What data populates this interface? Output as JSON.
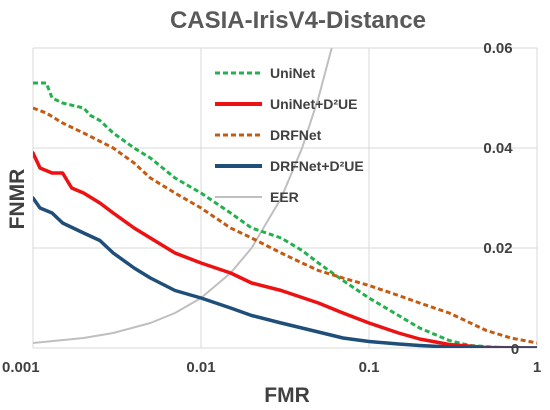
{
  "chart_data": {
    "type": "line",
    "title": "CASIA-IrisV4-Distance",
    "xlabel": "FMR",
    "ylabel": "FNMR",
    "x_scale": "log",
    "xlim": [
      0.001,
      1
    ],
    "ylim": [
      0,
      0.06
    ],
    "x_ticks": [
      {
        "value": 0.001,
        "label": "0.001"
      },
      {
        "value": 0.01,
        "label": "0.01"
      },
      {
        "value": 0.1,
        "label": "0.1"
      },
      {
        "value": 1,
        "label": "1"
      }
    ],
    "y_ticks": [
      {
        "value": 0,
        "label": "0"
      },
      {
        "value": 0.02,
        "label": "0.02"
      },
      {
        "value": 0.04,
        "label": "0.04"
      },
      {
        "value": 0.06,
        "label": "0.06"
      }
    ],
    "grid": true,
    "legend_position": "top-center",
    "series": [
      {
        "name": "UniNet",
        "color": "#22b14c",
        "dash": "dashed",
        "points": [
          [
            0.001,
            0.053
          ],
          [
            0.0012,
            0.053
          ],
          [
            0.0013,
            0.05
          ],
          [
            0.0015,
            0.049
          ],
          [
            0.002,
            0.048
          ],
          [
            0.0022,
            0.0465
          ],
          [
            0.0025,
            0.0455
          ],
          [
            0.003,
            0.043
          ],
          [
            0.004,
            0.04
          ],
          [
            0.005,
            0.038
          ],
          [
            0.007,
            0.034
          ],
          [
            0.01,
            0.031
          ],
          [
            0.015,
            0.027
          ],
          [
            0.02,
            0.024
          ],
          [
            0.03,
            0.022
          ],
          [
            0.04,
            0.0195
          ],
          [
            0.05,
            0.017
          ],
          [
            0.07,
            0.0135
          ],
          [
            0.1,
            0.01
          ],
          [
            0.15,
            0.0065
          ],
          [
            0.2,
            0.004
          ],
          [
            0.3,
            0.0015
          ],
          [
            0.4,
            0.0005
          ],
          [
            0.6,
            0.0001
          ],
          [
            1,
            0
          ]
        ]
      },
      {
        "name": "UniNet+D²UE",
        "color": "#ee1111",
        "dash": "solid",
        "points": [
          [
            0.001,
            0.039
          ],
          [
            0.0011,
            0.036
          ],
          [
            0.0013,
            0.035
          ],
          [
            0.0015,
            0.035
          ],
          [
            0.0017,
            0.032
          ],
          [
            0.002,
            0.031
          ],
          [
            0.0025,
            0.029
          ],
          [
            0.003,
            0.027
          ],
          [
            0.004,
            0.024
          ],
          [
            0.005,
            0.022
          ],
          [
            0.007,
            0.019
          ],
          [
            0.01,
            0.017
          ],
          [
            0.015,
            0.015
          ],
          [
            0.02,
            0.013
          ],
          [
            0.03,
            0.0115
          ],
          [
            0.05,
            0.009
          ],
          [
            0.07,
            0.007
          ],
          [
            0.1,
            0.005
          ],
          [
            0.15,
            0.003
          ],
          [
            0.2,
            0.0018
          ],
          [
            0.3,
            0.0007
          ],
          [
            0.5,
            0.0001
          ],
          [
            1,
            0
          ]
        ]
      },
      {
        "name": "DRFNet",
        "color": "#c55a11",
        "dash": "dashed",
        "points": [
          [
            0.001,
            0.048
          ],
          [
            0.0012,
            0.047
          ],
          [
            0.0015,
            0.045
          ],
          [
            0.002,
            0.043
          ],
          [
            0.003,
            0.04
          ],
          [
            0.004,
            0.037
          ],
          [
            0.005,
            0.034
          ],
          [
            0.007,
            0.031
          ],
          [
            0.01,
            0.028
          ],
          [
            0.015,
            0.024
          ],
          [
            0.02,
            0.022
          ],
          [
            0.03,
            0.019
          ],
          [
            0.04,
            0.017
          ],
          [
            0.05,
            0.0155
          ],
          [
            0.07,
            0.014
          ],
          [
            0.1,
            0.0125
          ],
          [
            0.15,
            0.0105
          ],
          [
            0.2,
            0.009
          ],
          [
            0.3,
            0.007
          ],
          [
            0.5,
            0.0035
          ],
          [
            0.7,
            0.002
          ],
          [
            1,
            0.001
          ]
        ]
      },
      {
        "name": "DRFNet+D²UE",
        "color": "#1f4e79",
        "dash": "solid",
        "points": [
          [
            0.001,
            0.03
          ],
          [
            0.0011,
            0.028
          ],
          [
            0.0013,
            0.027
          ],
          [
            0.0015,
            0.025
          ],
          [
            0.002,
            0.023
          ],
          [
            0.0025,
            0.0215
          ],
          [
            0.003,
            0.019
          ],
          [
            0.004,
            0.016
          ],
          [
            0.005,
            0.014
          ],
          [
            0.007,
            0.0115
          ],
          [
            0.01,
            0.01
          ],
          [
            0.015,
            0.008
          ],
          [
            0.02,
            0.0065
          ],
          [
            0.03,
            0.005
          ],
          [
            0.05,
            0.0032
          ],
          [
            0.07,
            0.002
          ],
          [
            0.1,
            0.0013
          ],
          [
            0.15,
            0.0008
          ],
          [
            0.2,
            0.0005
          ],
          [
            0.3,
            0.0002
          ],
          [
            0.5,
            0
          ],
          [
            1,
            0
          ]
        ]
      },
      {
        "name": "EER",
        "color": "#bfbfbf",
        "dash": "solid",
        "points": [
          [
            0.001,
            0.001
          ],
          [
            0.002,
            0.002
          ],
          [
            0.003,
            0.003
          ],
          [
            0.005,
            0.005
          ],
          [
            0.007,
            0.007
          ],
          [
            0.01,
            0.01
          ],
          [
            0.015,
            0.015
          ],
          [
            0.02,
            0.02
          ],
          [
            0.03,
            0.03
          ],
          [
            0.04,
            0.04
          ],
          [
            0.05,
            0.05
          ],
          [
            0.06,
            0.06
          ]
        ]
      }
    ]
  }
}
